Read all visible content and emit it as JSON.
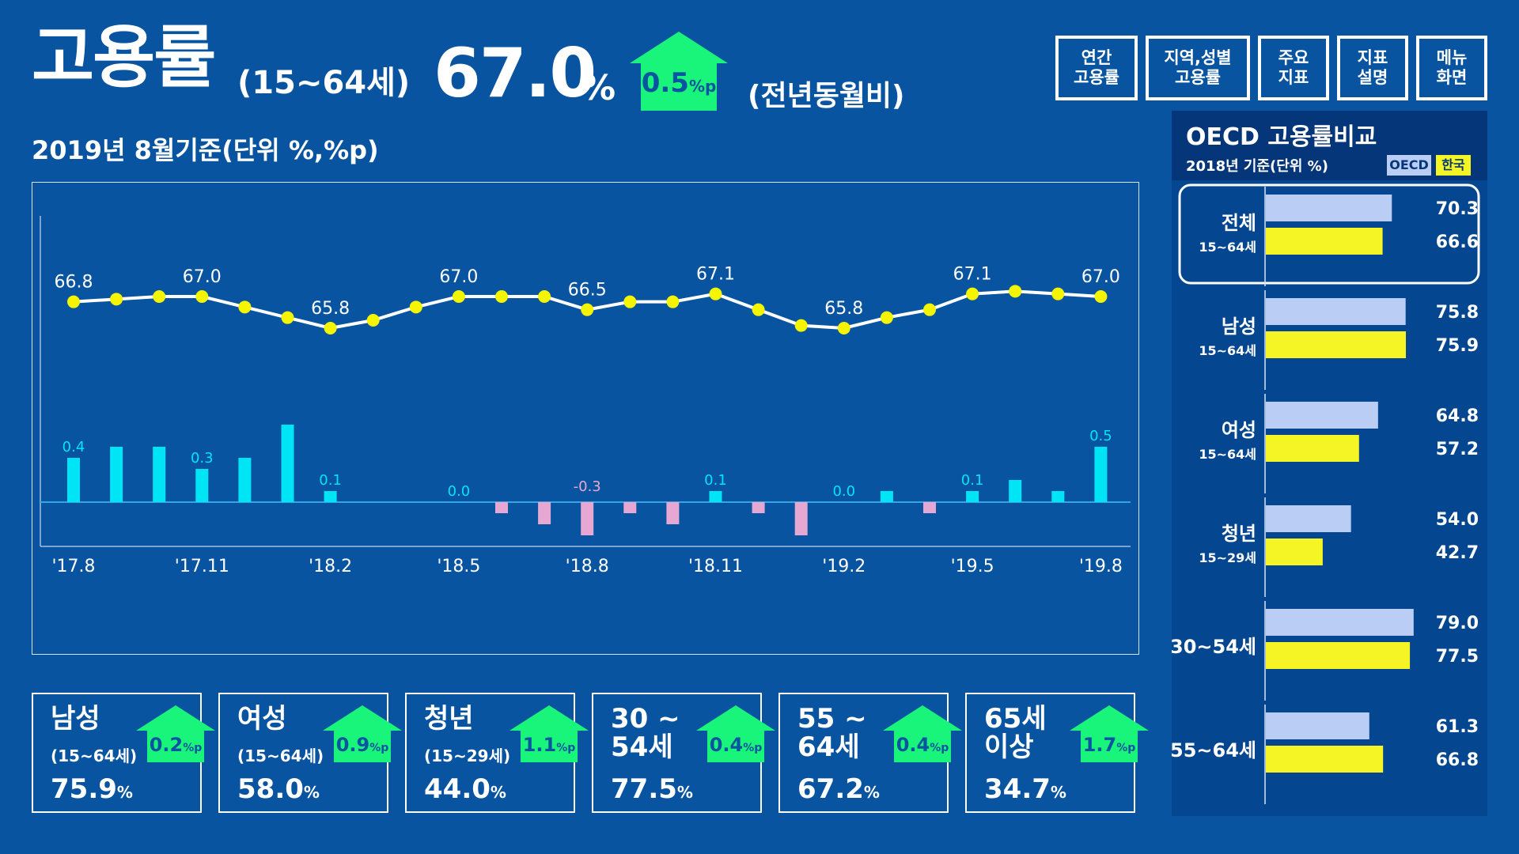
{
  "header": {
    "title": "고용률",
    "age_range": "(15~64세)",
    "value": "67.0",
    "unit": "%",
    "change": "0.5",
    "change_unit": "%p",
    "yoy_label": "(전년동월비)",
    "subtitle": "2019년 8월기준(단위 %,%p)"
  },
  "nav": [
    {
      "line1": "연간",
      "line2": "고용률"
    },
    {
      "line1": "지역,성별",
      "line2": "고용률"
    },
    {
      "line1": "주요",
      "line2": "지표"
    },
    {
      "line1": "지표",
      "line2": "설명"
    },
    {
      "line1": "메뉴",
      "line2": "화면"
    }
  ],
  "colors": {
    "background": "#0854a0",
    "accent_green": "#19f57a",
    "line_dot": "#f5f500",
    "bar_positive": "#00e5f5",
    "bar_negative": "#e6a8d2",
    "oecd_bar": "#b9cdf5",
    "korea_bar": "#f5f526"
  },
  "chart_data": [
    {
      "type": "line",
      "x": [
        "'17.8",
        "'17.9",
        "'17.10",
        "'17.11",
        "'17.12",
        "'18.1",
        "'18.2",
        "'18.3",
        "'18.4",
        "'18.5",
        "'18.6",
        "'18.7",
        "'18.8",
        "'18.9",
        "'18.10",
        "'18.11",
        "'18.12",
        "'19.1",
        "'19.2",
        "'19.3",
        "'19.4",
        "'19.5",
        "'19.6",
        "'19.7",
        "'19.8"
      ],
      "tick_labels": [
        "'17.8",
        "'17.11",
        "'18.2",
        "'18.5",
        "'18.8",
        "'18.11",
        "'19.2",
        "'19.5",
        "'19.8"
      ],
      "tick_every": 3,
      "values": [
        66.8,
        66.9,
        67.0,
        67.0,
        66.6,
        66.2,
        65.8,
        66.1,
        66.6,
        67.0,
        67.0,
        67.0,
        66.5,
        66.8,
        66.8,
        67.1,
        66.5,
        65.9,
        65.8,
        66.2,
        66.5,
        67.1,
        67.2,
        67.1,
        67.0
      ],
      "labeled_values": [
        "66.8",
        "67.0",
        "65.8",
        "67.0",
        "66.5",
        "67.1",
        "65.8",
        "67.1",
        "67.0"
      ]
    },
    {
      "type": "bar",
      "x": [
        "'17.8",
        "'17.9",
        "'17.10",
        "'17.11",
        "'17.12",
        "'18.1",
        "'18.2",
        "'18.3",
        "'18.4",
        "'18.5",
        "'18.6",
        "'18.7",
        "'18.8",
        "'18.9",
        "'18.10",
        "'18.11",
        "'18.12",
        "'19.1",
        "'19.2",
        "'19.3",
        "'19.4",
        "'19.5",
        "'19.6",
        "'19.7",
        "'19.8"
      ],
      "values": [
        0.4,
        0.5,
        0.5,
        0.3,
        0.4,
        0.7,
        0.1,
        0.0,
        0.0,
        0.0,
        -0.1,
        -0.2,
        -0.3,
        -0.1,
        -0.2,
        0.1,
        -0.1,
        -0.3,
        0.0,
        0.1,
        -0.1,
        0.1,
        0.2,
        0.1,
        0.5
      ],
      "labeled_values": [
        "0.4",
        "0.3",
        "0.1",
        "0.0",
        "-0.3",
        "0.1",
        "0.0",
        "0.1",
        "0.5"
      ],
      "zero_line": true
    },
    {
      "type": "bar",
      "title": "OECD 고용률비교",
      "subtitle": "2018년 기준(단위 %)",
      "legend": [
        {
          "name": "OECD",
          "color": "#b9cdf5"
        },
        {
          "name": "한국",
          "color": "#f5f526"
        }
      ],
      "categories": [
        {
          "name": "전체",
          "range": "15~64세"
        },
        {
          "name": "남성",
          "range": "15~64세"
        },
        {
          "name": "여성",
          "range": "15~64세"
        },
        {
          "name": "청년",
          "range": "15~29세"
        },
        {
          "name": "30~54세",
          "range": ""
        },
        {
          "name": "55~64세",
          "range": ""
        }
      ],
      "series": [
        {
          "name": "OECD",
          "values": [
            70.3,
            75.8,
            64.8,
            54.0,
            79.0,
            61.3
          ],
          "labels": [
            "70.3",
            "75.8",
            "64.8",
            "54.0",
            "79.0",
            "61.3"
          ]
        },
        {
          "name": "한국",
          "values": [
            66.6,
            75.9,
            57.2,
            42.7,
            77.5,
            66.8
          ],
          "labels": [
            "66.6",
            "75.9",
            "57.2",
            "42.7",
            "77.5",
            "66.8"
          ]
        }
      ],
      "orientation": "horizontal",
      "xlim": [
        20,
        80
      ],
      "selected_index": 0
    }
  ],
  "cards": [
    {
      "name": "남성",
      "range": "(15~64세)",
      "value": "75.9",
      "unit": "%",
      "change": "0.2",
      "change_unit": "%p"
    },
    {
      "name": "여성",
      "range": "(15~64세)",
      "value": "58.0",
      "unit": "%",
      "change": "0.9",
      "change_unit": "%p"
    },
    {
      "name": "청년",
      "range": "(15~29세)",
      "value": "44.0",
      "unit": "%",
      "change": "1.1",
      "change_unit": "%p"
    },
    {
      "name": "30 ~\n54세",
      "range": "",
      "value": "77.5",
      "unit": "%",
      "change": "0.4",
      "change_unit": "%p"
    },
    {
      "name": "55 ~\n64세",
      "range": "",
      "value": "67.2",
      "unit": "%",
      "change": "0.4",
      "change_unit": "%p"
    },
    {
      "name": "65세\n이상",
      "range": "",
      "value": "34.7",
      "unit": "%",
      "change": "1.7",
      "change_unit": "%p"
    }
  ]
}
